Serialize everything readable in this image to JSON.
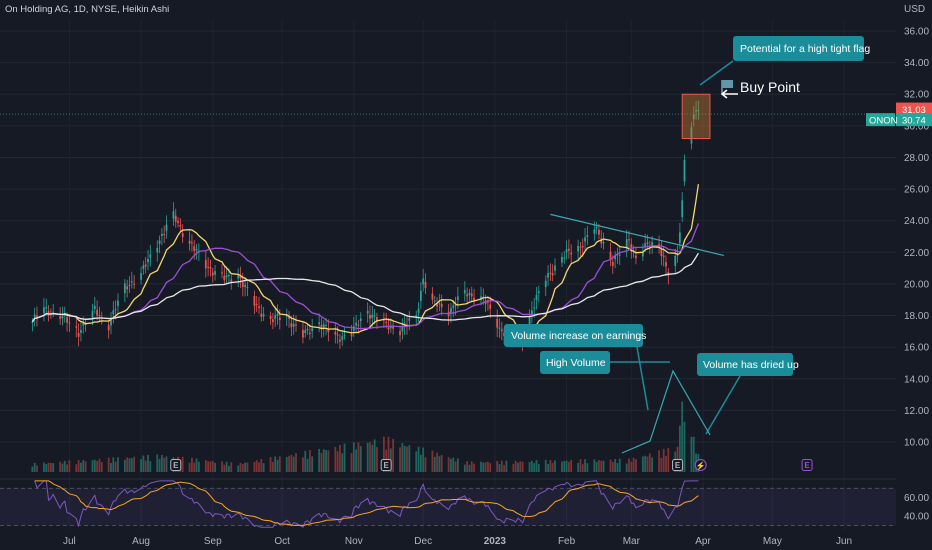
{
  "header": {
    "legend": "On Holding AG, 1D, NYSE, Heikin Ashi",
    "currency": "USD"
  },
  "colors": {
    "up": "#26a69a",
    "down": "#ef5350",
    "sma_fast": "#f5d76e",
    "sma_mid": "#9c4fd6",
    "sma_slow": "#e8e8e8",
    "annotation": "#1b8c99",
    "trendline": "#3aa8b0",
    "rsi": "#7e57c2",
    "rsi_ma": "#f5a623",
    "price_tag": "#ef5350",
    "symbol_tag": "#26a69a",
    "flag_box": "#c2782e"
  },
  "chart_data": [
    {
      "type": "candlestick",
      "title": "On Holding AG, 1D, NYSE, Heikin Ashi",
      "y_unit": "USD",
      "ylim": [
        8.5,
        36.5
      ],
      "y_ticks": [
        10,
        12,
        14,
        16,
        18,
        20,
        22,
        24,
        26,
        28,
        30,
        32,
        34,
        36
      ],
      "y_tick_labels": [
        "10.00",
        "12.00",
        "14.00",
        "16.00",
        "18.00",
        "20.00",
        "22.00",
        "24.00",
        "26.00",
        "28.00",
        "30.00",
        "32.00",
        "34.00",
        "36.00"
      ],
      "x_tick_labels": [
        "Jul",
        "Aug",
        "Sep",
        "Oct",
        "Nov",
        "Dec",
        "2023",
        "Feb",
        "Mar",
        "Apr",
        "May",
        "Jun"
      ],
      "close_anchors": [
        [
          "2022-06-15",
          17.6
        ],
        [
          "2022-06-20",
          18.4
        ],
        [
          "2022-06-27",
          18.0
        ],
        [
          "2022-07-05",
          17.0
        ],
        [
          "2022-07-12",
          18.3
        ],
        [
          "2022-07-18",
          17.4
        ],
        [
          "2022-07-25",
          19.8
        ],
        [
          "2022-08-01",
          20.6
        ],
        [
          "2022-08-08",
          22.6
        ],
        [
          "2022-08-15",
          24.3
        ],
        [
          "2022-08-22",
          22.6
        ],
        [
          "2022-08-29",
          21.2
        ],
        [
          "2022-09-06",
          20.3
        ],
        [
          "2022-09-12",
          20.6
        ],
        [
          "2022-09-19",
          18.7
        ],
        [
          "2022-09-26",
          17.7
        ],
        [
          "2022-10-03",
          18.0
        ],
        [
          "2022-10-10",
          16.7
        ],
        [
          "2022-10-17",
          17.6
        ],
        [
          "2022-10-24",
          16.6
        ],
        [
          "2022-10-31",
          16.9
        ],
        [
          "2022-11-07",
          18.3
        ],
        [
          "2022-11-14",
          17.4
        ],
        [
          "2022-11-21",
          17.1
        ],
        [
          "2022-11-28",
          17.9
        ],
        [
          "2022-12-01",
          20.4
        ],
        [
          "2022-12-05",
          18.8
        ],
        [
          "2022-12-12",
          18.3
        ],
        [
          "2022-12-19",
          19.4
        ],
        [
          "2022-12-27",
          19.1
        ],
        [
          "2023-01-03",
          17.2
        ],
        [
          "2023-01-09",
          16.6
        ],
        [
          "2023-01-13",
          16.5
        ],
        [
          "2023-01-17",
          18.4
        ],
        [
          "2023-01-23",
          20.3
        ],
        [
          "2023-01-30",
          21.7
        ],
        [
          "2023-02-06",
          22.3
        ],
        [
          "2023-02-13",
          23.5
        ],
        [
          "2023-02-17",
          22.6
        ],
        [
          "2023-02-21",
          21.4
        ],
        [
          "2023-02-24",
          21.9
        ],
        [
          "2023-02-28",
          22.8
        ],
        [
          "2023-03-03",
          21.7
        ],
        [
          "2023-03-08",
          22.4
        ],
        [
          "2023-03-13",
          22.6
        ],
        [
          "2023-03-17",
          20.6
        ],
        [
          "2023-03-21",
          21.7
        ],
        [
          "2023-03-23",
          25.2
        ],
        [
          "2023-03-24",
          28.0
        ],
        [
          "2023-03-27",
          30.2
        ],
        [
          "2023-03-29",
          30.9
        ],
        [
          "2023-03-30",
          31.03
        ]
      ],
      "last_price": "31.03",
      "symbol_tag": "ONON",
      "symbol_value": "30.74",
      "moving_averages": [
        {
          "color": "#f5d76e",
          "window": 10
        },
        {
          "color": "#9c4fd6",
          "window": 25
        },
        {
          "color": "#e8e8e8",
          "window": 60
        }
      ]
    },
    {
      "type": "bar",
      "unit": "volume",
      "relative_volume_anchors": [
        [
          "2022-06-15",
          0.1
        ],
        [
          "2022-08-09",
          0.2
        ],
        [
          "2022-09-12",
          0.1
        ],
        [
          "2022-11-15",
          0.4
        ],
        [
          "2022-12-20",
          0.12
        ],
        [
          "2023-02-28",
          0.15
        ],
        [
          "2023-03-21",
          0.3
        ],
        [
          "2023-03-23",
          0.9
        ],
        [
          "2023-03-24",
          0.6
        ],
        [
          "2023-03-27",
          0.5
        ],
        [
          "2023-03-30",
          0.2
        ]
      ]
    },
    {
      "type": "line",
      "y_ticks": [
        40,
        60
      ],
      "y_tick_labels": [
        "40.00",
        "60.00"
      ],
      "ylim": [
        25,
        80
      ],
      "bands": [
        30,
        70
      ],
      "series": [
        {
          "color": "#7e57c2"
        },
        {
          "color": "#f5a623"
        }
      ]
    }
  ],
  "annotations": {
    "flag_callout": "Potential for a high tight flag",
    "buy_point": "Buy Point",
    "volume_earnings": "Volume increase on earnings",
    "high_volume": "High Volume",
    "dried_up": "Volume has dried up",
    "earnings_marker": "E",
    "dividend_marker": "⚡"
  }
}
